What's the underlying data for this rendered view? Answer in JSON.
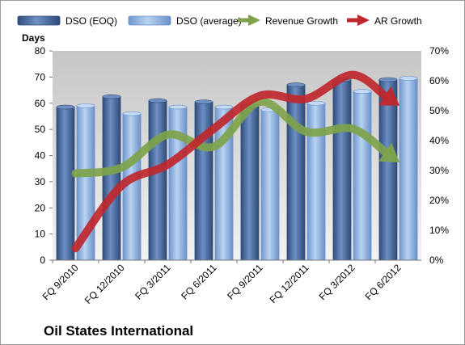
{
  "chart_data": {
    "type": "bar",
    "title": "",
    "footer_title": "Oil States International",
    "ylabel": "Days",
    "y2label": "",
    "ylim": [
      0,
      80
    ],
    "y2lim": [
      0,
      70
    ],
    "y_ticks": [
      "0",
      "10",
      "20",
      "30",
      "40",
      "50",
      "60",
      "70",
      "80"
    ],
    "y2_ticks": [
      "0%",
      "10%",
      "20%",
      "30%",
      "40%",
      "50%",
      "60%",
      "70%"
    ],
    "categories": [
      "FQ 9/2010",
      "FQ 12/2010",
      "FQ 3/2011",
      "FQ 6/2011",
      "FQ 9/2011",
      "FQ 12/2011",
      "FQ 3/2012",
      "FQ 6/2012"
    ],
    "series": [
      {
        "name": "DSO (EOQ)",
        "kind": "bar",
        "axis": "left",
        "color": "#4a6fa5",
        "values": [
          58.5,
          62.5,
          61,
          60.5,
          59,
          67,
          69,
          69
        ]
      },
      {
        "name": "DSO (average)",
        "kind": "bar",
        "axis": "left",
        "color": "#8fb4e3",
        "values": [
          59,
          56,
          58.5,
          58.5,
          57.5,
          60,
          64.5,
          69.5
        ]
      },
      {
        "name": "Revenue Growth",
        "kind": "arrow-line",
        "axis": "right",
        "unit": "%",
        "color": "#7ea34b",
        "values": [
          29,
          31,
          42,
          38,
          53,
          43,
          44,
          33
        ]
      },
      {
        "name": "AR Growth",
        "kind": "arrow-line",
        "axis": "right",
        "unit": "%",
        "color": "#c0272d",
        "values": [
          4,
          25,
          32,
          44,
          55,
          54,
          62,
          52
        ]
      }
    ],
    "legend_position": "top",
    "grid": false
  }
}
